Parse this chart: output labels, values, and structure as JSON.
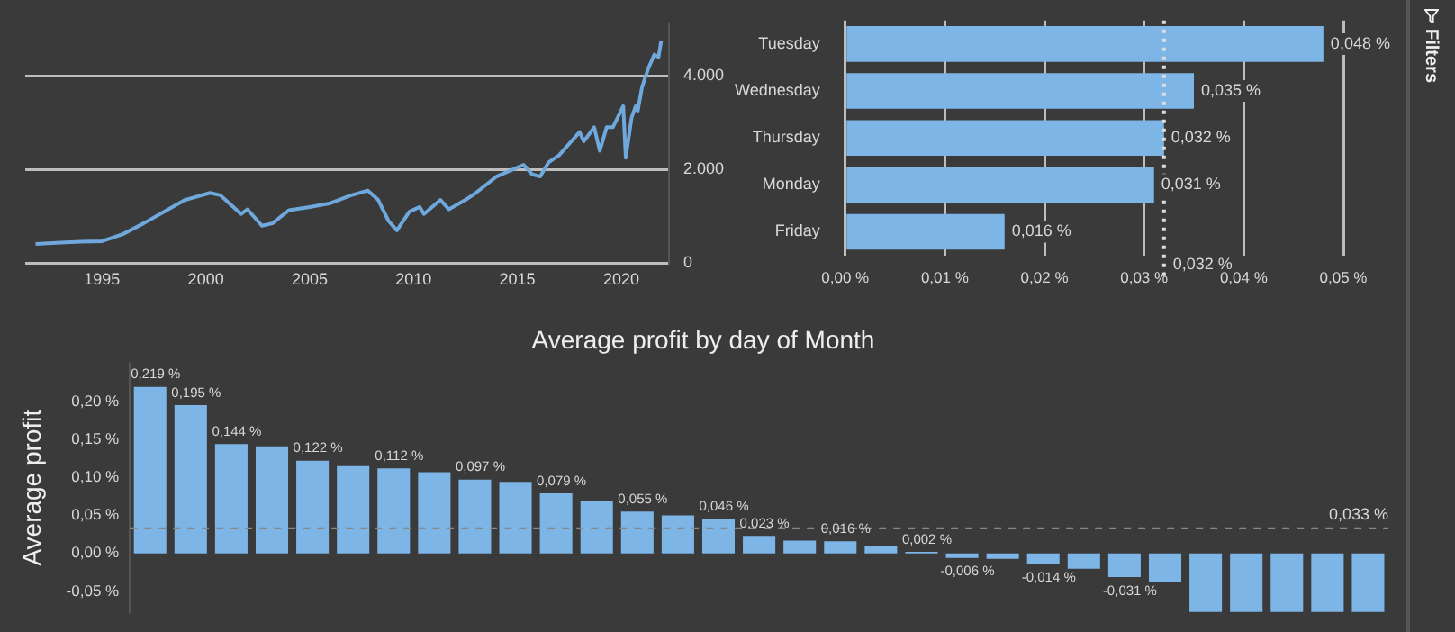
{
  "chart_data": [
    {
      "type": "line",
      "x": [
        1991.8,
        1993,
        1994,
        1995,
        1996,
        1997,
        1998,
        1999,
        2000.2,
        2000.7,
        2001.7,
        2002.0,
        2002.7,
        2003.2,
        2004,
        2005,
        2006,
        2007,
        2007.8,
        2008.3,
        2008.8,
        2009.2,
        2009.8,
        2010.3,
        2010.5,
        2011.3,
        2011.7,
        2012.5,
        2013,
        2014,
        2015.3,
        2015.7,
        2016.1,
        2016.5,
        2017,
        2018,
        2018.2,
        2018.7,
        2018.97,
        2019.3,
        2019.6,
        2020.1,
        2020.22,
        2020.5,
        2020.7,
        2020.8,
        2021.0,
        2021.3,
        2021.6,
        2021.8,
        2021.93
      ],
      "series": [
        {
          "color": "#6fa8dc",
          "values": [
            410,
            440,
            460,
            470,
            620,
            850,
            1100,
            1350,
            1500,
            1450,
            1050,
            1150,
            800,
            850,
            1130,
            1200,
            1280,
            1450,
            1550,
            1350,
            900,
            700,
            1100,
            1200,
            1050,
            1350,
            1150,
            1350,
            1500,
            1850,
            2100,
            1900,
            1850,
            2150,
            2300,
            2800,
            2600,
            2900,
            2400,
            2900,
            2900,
            3350,
            2250,
            3100,
            3350,
            3250,
            3750,
            4150,
            4450,
            4400,
            4750
          ]
        }
      ],
      "xlim": [
        1991.3,
        2022.3
      ],
      "xticks": [
        1995,
        2000,
        2005,
        2010,
        2015,
        2020
      ],
      "ylim": [
        0,
        5100
      ],
      "yticks": [
        0,
        {
          "value": 2000,
          "label": "2.000"
        },
        {
          "value": 4000,
          "label": "4.000"
        }
      ],
      "grid": "y"
    },
    {
      "type": "bar",
      "orientation": "horizontal",
      "categories": [
        "Tuesday",
        "Wednesday",
        "Thursday",
        "Monday",
        "Friday"
      ],
      "values": [
        0.048,
        0.035,
        0.032,
        0.031,
        0.016
      ],
      "color": "#7cb5e6",
      "value_labels": [
        "0,048 %",
        "0,035 %",
        "0,032 %",
        "0,031 %",
        "0,016 %"
      ],
      "xlim": [
        0,
        0.05
      ],
      "xticks": [
        {
          "value": 0,
          "label": "0,00 %"
        },
        {
          "value": 0.01,
          "label": "0,01 %"
        },
        {
          "value": 0.02,
          "label": "0,02 %"
        },
        {
          "value": 0.03,
          "label": "0,03 %"
        },
        {
          "value": 0.04,
          "label": "0,04 %"
        },
        {
          "value": 0.05,
          "label": "0,05 %"
        }
      ],
      "ref_lines": [
        {
          "axis": "x",
          "value": 0.032,
          "label": "0,032 %",
          "color": "#dddddd",
          "line_style": "dotted"
        }
      ],
      "grid": "x"
    },
    {
      "type": "bar",
      "title": "Average profit by day of Month",
      "ylabel": "Average profit",
      "categories": [
        null,
        null,
        null,
        null,
        null,
        null,
        null,
        null,
        null,
        null,
        null,
        null,
        null,
        null,
        null,
        null,
        null,
        null,
        null,
        null,
        null,
        null,
        null,
        null,
        null,
        null,
        null,
        null,
        null,
        null,
        null
      ],
      "values": [
        0.219,
        0.195,
        0.144,
        0.141,
        0.122,
        0.115,
        0.112,
        0.107,
        0.097,
        0.094,
        0.079,
        0.069,
        0.055,
        0.05,
        0.046,
        0.023,
        0.017,
        0.016,
        0.01,
        0.002,
        -0.006,
        -0.007,
        -0.014,
        -0.02,
        -0.031,
        -0.037,
        -0.077,
        -0.077,
        -0.077,
        -0.077,
        -0.077
      ],
      "color": "#7cb5e6",
      "value_labels": [
        "0,219 %",
        "0,195 %",
        "0,144 %",
        null,
        "0,122 %",
        null,
        "0,112 %",
        null,
        "0,097 %",
        null,
        "0,079 %",
        null,
        "0,055 %",
        null,
        "0,046 %",
        "0,023 %",
        null,
        "0,016 %",
        null,
        "0,002 %",
        "-0,006 %",
        null,
        "-0,014 %",
        null,
        "-0,031 %",
        null,
        null,
        null,
        null,
        null,
        null
      ],
      "ylim": [
        -0.077,
        0.25
      ],
      "yticks": [
        {
          "value": -0.05,
          "label": "-0,05 %"
        },
        {
          "value": 0,
          "label": "0,00 %"
        },
        {
          "value": 0.05,
          "label": "0,05 %"
        },
        {
          "value": 0.1,
          "label": "0,10 %"
        },
        {
          "value": 0.15,
          "label": "0,15 %"
        },
        {
          "value": 0.2,
          "label": "0,20 %"
        }
      ],
      "ref_lines": [
        {
          "axis": "y",
          "value": 0.033,
          "label": "0,033 %",
          "color": "#888888",
          "line_style": "dashed"
        }
      ],
      "tick_labels": "y",
      "grid": false
    },
    {
      "type": "other",
      "title": "Filters"
    }
  ]
}
